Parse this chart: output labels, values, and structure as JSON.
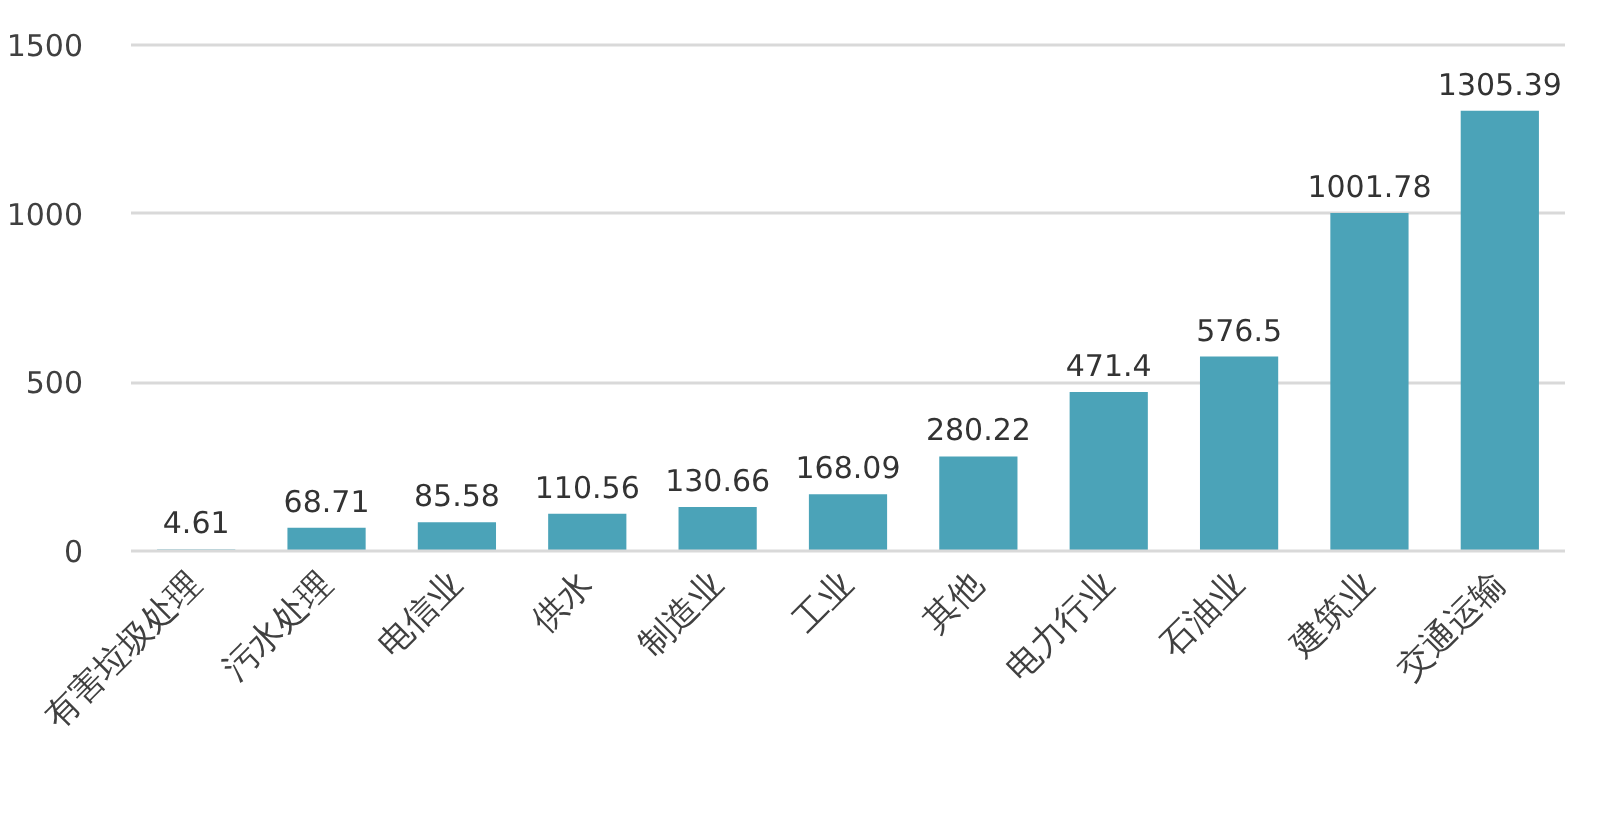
{
  "chart_data": {
    "type": "bar",
    "categories": [
      "有害垃圾处理",
      "污水处理",
      "电信业",
      "供水",
      "制造业",
      "工业",
      "其他",
      "电力行业",
      "石油业",
      "建筑业",
      "交通运输"
    ],
    "values": [
      4.61,
      68.71,
      85.58,
      110.56,
      130.66,
      168.09,
      280.22,
      471.4,
      576.5,
      1001.78,
      1305.39
    ],
    "color": "#4ba3b8",
    "ylim": [
      0,
      1500
    ],
    "yticks": [
      0,
      500,
      1000,
      1500
    ],
    "grid": "y",
    "data_labels": true
  }
}
